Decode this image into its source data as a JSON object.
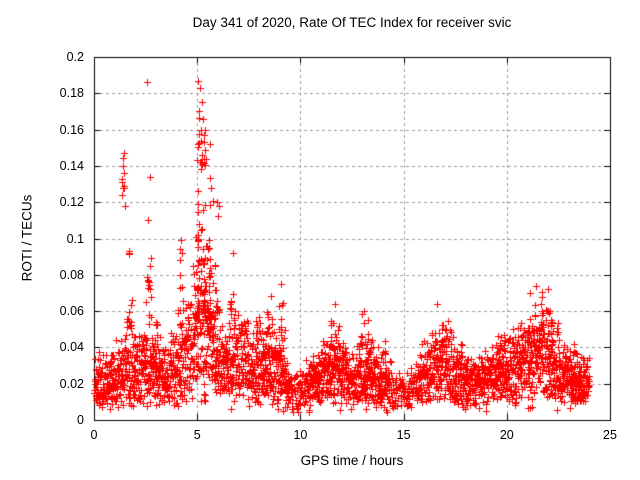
{
  "window": {
    "background": "#ffffff"
  },
  "chart_data": {
    "type": "scatter",
    "title": "Day 341 of 2020, Rate Of TEC Index for receiver svic",
    "xlabel": "GPS time / hours",
    "ylabel": "ROTI / TECUs",
    "xlim": [
      0,
      25
    ],
    "ylim": [
      0,
      0.2
    ],
    "xticks": {
      "values": [
        0,
        5,
        10,
        15,
        20,
        25
      ],
      "labels": [
        "0",
        "5",
        "10",
        "15",
        "20",
        "25"
      ]
    },
    "yticks": {
      "values": [
        0,
        0.02,
        0.04,
        0.06,
        0.08,
        0.1,
        0.12,
        0.14,
        0.16,
        0.18,
        0.2
      ],
      "labels": [
        "0",
        "0.02",
        "0.04",
        "0.06",
        "0.08",
        "0.1",
        "0.12",
        "0.14",
        "0.16",
        "0.18",
        "0.2"
      ]
    },
    "grid": {
      "visible": true,
      "color": "#a0a0a0",
      "dash": [
        3,
        3
      ]
    },
    "marker": {
      "shape": "plus",
      "size": 7,
      "color": "#ff0000"
    },
    "series_name": "ROTI",
    "x_data_range": [
      0.03,
      24.05
    ],
    "band_nodes_hour_lo_med_hi": [
      [
        0.0,
        0.01,
        0.022,
        0.04
      ],
      [
        0.5,
        0.008,
        0.018,
        0.035
      ],
      [
        1.0,
        0.01,
        0.022,
        0.042
      ],
      [
        1.5,
        0.01,
        0.028,
        0.055
      ],
      [
        2.0,
        0.01,
        0.024,
        0.048
      ],
      [
        2.5,
        0.01,
        0.026,
        0.052
      ],
      [
        3.0,
        0.012,
        0.028,
        0.05
      ],
      [
        3.5,
        0.01,
        0.024,
        0.046
      ],
      [
        4.0,
        0.012,
        0.028,
        0.06
      ],
      [
        4.5,
        0.015,
        0.035,
        0.07
      ],
      [
        5.0,
        0.018,
        0.045,
        0.095
      ],
      [
        5.3,
        0.02,
        0.05,
        0.11
      ],
      [
        5.6,
        0.018,
        0.042,
        0.09
      ],
      [
        6.0,
        0.015,
        0.032,
        0.06
      ],
      [
        6.5,
        0.012,
        0.028,
        0.055
      ],
      [
        7.0,
        0.01,
        0.03,
        0.065
      ],
      [
        7.5,
        0.012,
        0.028,
        0.055
      ],
      [
        8.0,
        0.01,
        0.026,
        0.05
      ],
      [
        8.5,
        0.012,
        0.03,
        0.06
      ],
      [
        9.0,
        0.01,
        0.025,
        0.05
      ],
      [
        9.5,
        0.006,
        0.016,
        0.032
      ],
      [
        10.0,
        0.005,
        0.014,
        0.028
      ],
      [
        10.5,
        0.008,
        0.02,
        0.038
      ],
      [
        11.0,
        0.01,
        0.024,
        0.042
      ],
      [
        11.5,
        0.012,
        0.03,
        0.055
      ],
      [
        12.0,
        0.01,
        0.026,
        0.048
      ],
      [
        12.5,
        0.008,
        0.02,
        0.036
      ],
      [
        13.0,
        0.01,
        0.026,
        0.05
      ],
      [
        13.5,
        0.01,
        0.024,
        0.044
      ],
      [
        14.0,
        0.008,
        0.02,
        0.038
      ],
      [
        14.5,
        0.007,
        0.016,
        0.03
      ],
      [
        15.0,
        0.006,
        0.015,
        0.028
      ],
      [
        15.5,
        0.008,
        0.018,
        0.032
      ],
      [
        16.0,
        0.01,
        0.024,
        0.045
      ],
      [
        16.5,
        0.012,
        0.03,
        0.055
      ],
      [
        17.0,
        0.012,
        0.028,
        0.052
      ],
      [
        17.5,
        0.01,
        0.026,
        0.048
      ],
      [
        18.0,
        0.008,
        0.02,
        0.038
      ],
      [
        18.5,
        0.008,
        0.02,
        0.036
      ],
      [
        19.0,
        0.008,
        0.022,
        0.04
      ],
      [
        19.5,
        0.01,
        0.026,
        0.048
      ],
      [
        20.0,
        0.01,
        0.024,
        0.044
      ],
      [
        20.5,
        0.01,
        0.028,
        0.055
      ],
      [
        21.0,
        0.012,
        0.032,
        0.06
      ],
      [
        21.5,
        0.012,
        0.034,
        0.065
      ],
      [
        22.0,
        0.012,
        0.032,
        0.062
      ],
      [
        22.5,
        0.01,
        0.026,
        0.05
      ],
      [
        23.0,
        0.008,
        0.022,
        0.04
      ],
      [
        23.5,
        0.008,
        0.02,
        0.038
      ],
      [
        24.0,
        0.01,
        0.022,
        0.04
      ]
    ],
    "spike_clusters_x0_x1_lo_hi_n": [
      [
        1.3,
        1.52,
        0.118,
        0.15,
        7
      ],
      [
        1.58,
        1.85,
        0.048,
        0.102,
        14
      ],
      [
        2.5,
        2.85,
        0.05,
        0.118,
        14
      ],
      [
        2.95,
        3.1,
        0.045,
        0.062,
        5
      ],
      [
        3.95,
        4.35,
        0.05,
        0.102,
        12
      ],
      [
        4.8,
        5.8,
        0.055,
        0.155,
        85
      ],
      [
        5.0,
        5.45,
        0.14,
        0.188,
        16
      ],
      [
        5.8,
        6.1,
        0.06,
        0.128,
        12
      ],
      [
        6.55,
        6.9,
        0.05,
        0.094,
        12
      ],
      [
        7.2,
        7.45,
        0.045,
        0.062,
        6
      ],
      [
        7.65,
        8.05,
        0.045,
        0.076,
        10
      ],
      [
        8.35,
        8.65,
        0.045,
        0.08,
        10
      ],
      [
        8.85,
        9.25,
        0.045,
        0.076,
        10
      ],
      [
        11.35,
        12.0,
        0.04,
        0.064,
        14
      ],
      [
        12.85,
        13.35,
        0.04,
        0.061,
        10
      ],
      [
        13.9,
        14.15,
        0.036,
        0.047,
        5
      ],
      [
        16.3,
        17.3,
        0.04,
        0.066,
        16
      ],
      [
        19.55,
        19.95,
        0.036,
        0.05,
        7
      ],
      [
        20.55,
        22.6,
        0.04,
        0.075,
        40
      ],
      [
        23.2,
        23.45,
        0.035,
        0.046,
        5
      ]
    ],
    "outlier_points": [
      [
        2.57,
        0.186
      ],
      [
        2.7,
        0.134
      ],
      [
        2.62,
        0.11
      ],
      [
        1.45,
        0.147
      ],
      [
        1.42,
        0.14
      ],
      [
        1.38,
        0.131
      ],
      [
        1.35,
        0.124
      ],
      [
        5.05,
        0.187
      ],
      [
        5.15,
        0.183
      ],
      [
        5.22,
        0.175
      ],
      [
        5.1,
        0.17
      ],
      [
        5.3,
        0.166
      ],
      [
        5.18,
        0.16
      ],
      [
        5.35,
        0.157
      ],
      [
        5.02,
        0.152
      ],
      [
        5.4,
        0.149
      ],
      [
        5.45,
        0.144
      ],
      [
        4.2,
        0.099
      ],
      [
        6.75,
        0.092
      ],
      [
        9.05,
        0.075
      ],
      [
        11.7,
        0.064
      ],
      [
        13.1,
        0.06
      ],
      [
        16.6,
        0.064
      ],
      [
        21.1,
        0.07
      ],
      [
        21.4,
        0.074
      ],
      [
        22.0,
        0.072
      ]
    ]
  }
}
